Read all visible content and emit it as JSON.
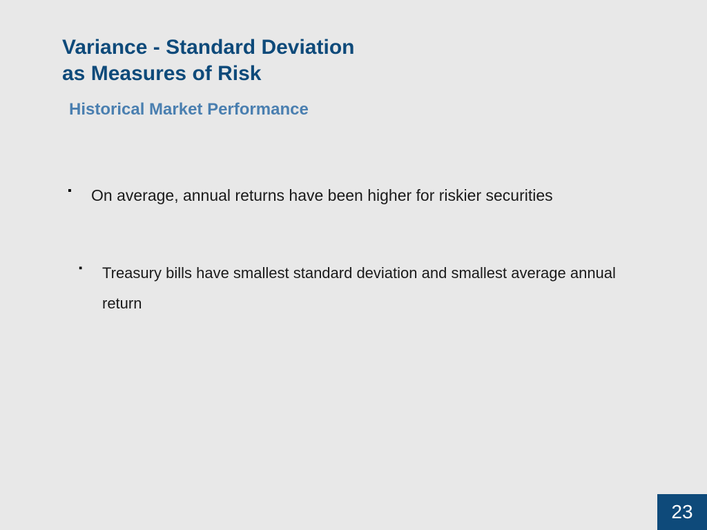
{
  "slide": {
    "title_line1": "Variance - Standard Deviation",
    "title_line2": "as Measures of Risk",
    "subtitle": "Historical Market Performance",
    "bullets": [
      "On average, annual returns have been higher for riskier securities",
      "Treasury bills have smallest standard deviation and smallest average annual return"
    ],
    "page_number": "23"
  },
  "styling": {
    "background_color": "#e8e8e8",
    "title_color": "#0e4a7a",
    "subtitle_color": "#4a7fb0",
    "body_text_color": "#1a1a1a",
    "page_box_bg": "#0e4a7a",
    "page_box_text": "#ffffff",
    "title_fontsize": 30,
    "subtitle_fontsize": 24,
    "body_fontsize": 23,
    "page_number_fontsize": 28
  }
}
